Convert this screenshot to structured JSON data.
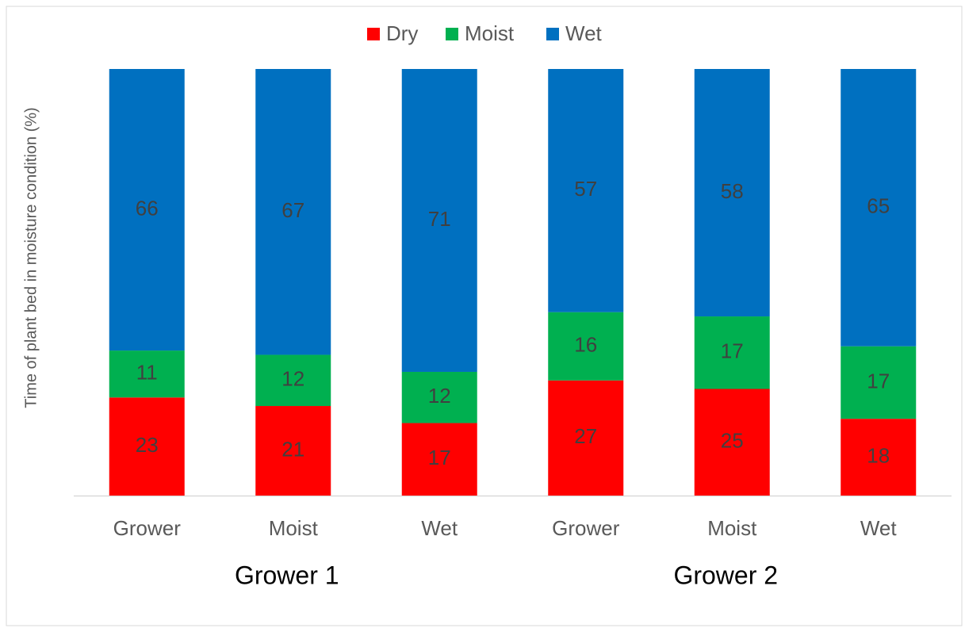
{
  "chart_data": {
    "type": "stacked_bar",
    "y_label": "Time of plant bed in moisture condition (%)",
    "categories": [
      "Grower",
      "Moist",
      "Wet",
      "Grower",
      "Moist",
      "Wet"
    ],
    "groups": [
      "Grower 1",
      "Grower 2"
    ],
    "series": [
      {
        "name": "Dry",
        "color": "#ff0000",
        "values": [
          23,
          21,
          17,
          27,
          25,
          18
        ]
      },
      {
        "name": "Moist",
        "color": "#00b050",
        "values": [
          11,
          12,
          12,
          16,
          17,
          17
        ]
      },
      {
        "name": "Wet",
        "color": "#0070c0",
        "values": [
          66,
          67,
          71,
          57,
          58,
          65
        ]
      }
    ],
    "ylim": [
      0,
      100
    ],
    "legend": "top"
  }
}
